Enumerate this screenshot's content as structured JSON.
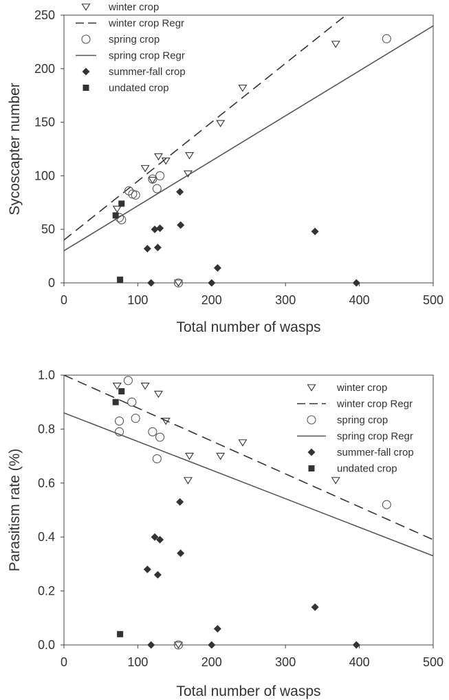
{
  "chart_data": [
    {
      "type": "scatter",
      "title": "",
      "xlabel": "Total number of wasps",
      "ylabel": "Sycoscapter number",
      "xlim": [
        0,
        500
      ],
      "ylim": [
        0,
        250
      ],
      "xticks": [
        "0",
        "100",
        "200",
        "300",
        "400",
        "500"
      ],
      "yticks": [
        "0",
        "50",
        "100",
        "150",
        "200",
        "250"
      ],
      "legend_position": "top-left",
      "series": [
        {
          "name": "winter crop",
          "kind": "points",
          "marker": "triangle-down-open",
          "color": "#333333",
          "points": [
            [
              72,
              69
            ],
            [
              110,
              107
            ],
            [
              120,
              96
            ],
            [
              128,
              118
            ],
            [
              138,
              114
            ],
            [
              155,
              0
            ],
            [
              170,
              119
            ],
            [
              168,
              102
            ],
            [
              212,
              149
            ],
            [
              242,
              182
            ],
            [
              368,
              223
            ]
          ]
        },
        {
          "name": "winter crop Regr",
          "kind": "line",
          "dash": "dashed",
          "color": "#333333",
          "line": [
            [
              0,
              40
            ],
            [
              500,
              315
            ]
          ]
        },
        {
          "name": "spring crop",
          "kind": "points",
          "marker": "circle-open",
          "color": "#555555",
          "points": [
            [
              75,
              61
            ],
            [
              78,
              59
            ],
            [
              88,
              86
            ],
            [
              93,
              83
            ],
            [
              97,
              82
            ],
            [
              120,
              97
            ],
            [
              126,
              88
            ],
            [
              130,
              100
            ],
            [
              155,
              0
            ],
            [
              437,
              228
            ]
          ]
        },
        {
          "name": "spring crop Regr",
          "kind": "line",
          "dash": "solid",
          "color": "#555555",
          "line": [
            [
              0,
              30
            ],
            [
              500,
              240
            ]
          ]
        },
        {
          "name": "summer-fall crop",
          "kind": "points",
          "marker": "diamond-filled",
          "color": "#333333",
          "points": [
            [
              113,
              32
            ],
            [
              118,
              0
            ],
            [
              123,
              50
            ],
            [
              127,
              33
            ],
            [
              130,
              51
            ],
            [
              157,
              85
            ],
            [
              158,
              54
            ],
            [
              200,
              0
            ],
            [
              208,
              14
            ],
            [
              340,
              48
            ],
            [
              396,
              0
            ]
          ]
        },
        {
          "name": "undated crop",
          "kind": "points",
          "marker": "square-filled",
          "color": "#333333",
          "points": [
            [
              70,
              63
            ],
            [
              78,
              74
            ],
            [
              76,
              3
            ]
          ]
        }
      ]
    },
    {
      "type": "scatter",
      "title": "",
      "xlabel": "Total number of wasps",
      "ylabel": "Parasitism rate (%)",
      "xlim": [
        0,
        500
      ],
      "ylim": [
        0,
        1.0
      ],
      "xticks": [
        "0",
        "100",
        "200",
        "300",
        "400",
        "500"
      ],
      "yticks": [
        "0.0",
        "0.2",
        "0.4",
        "0.6",
        "0.8",
        "1.0"
      ],
      "legend_position": "top-right",
      "series": [
        {
          "name": "winter crop",
          "kind": "points",
          "marker": "triangle-down-open",
          "color": "#333333",
          "points": [
            [
              72,
              0.96
            ],
            [
              110,
              0.96
            ],
            [
              128,
              0.93
            ],
            [
              138,
              0.83
            ],
            [
              155,
              0.0
            ],
            [
              168,
              0.61
            ],
            [
              170,
              0.7
            ],
            [
              212,
              0.7
            ],
            [
              242,
              0.75
            ],
            [
              368,
              0.61
            ]
          ]
        },
        {
          "name": "winter crop Regr",
          "kind": "line",
          "dash": "dashed",
          "color": "#333333",
          "line": [
            [
              0,
              1.0
            ],
            [
              500,
              0.39
            ]
          ]
        },
        {
          "name": "spring crop",
          "kind": "points",
          "marker": "circle-open",
          "color": "#555555",
          "points": [
            [
              75,
              0.83
            ],
            [
              75,
              0.79
            ],
            [
              87,
              0.98
            ],
            [
              92,
              0.9
            ],
            [
              97,
              0.84
            ],
            [
              120,
              0.79
            ],
            [
              126,
              0.69
            ],
            [
              130,
              0.77
            ],
            [
              155,
              0.0
            ],
            [
              437,
              0.52
            ]
          ]
        },
        {
          "name": "spring crop Regr",
          "kind": "line",
          "dash": "solid",
          "color": "#555555",
          "line": [
            [
              0,
              0.86
            ],
            [
              500,
              0.33
            ]
          ]
        },
        {
          "name": "summer-fall crop",
          "kind": "points",
          "marker": "diamond-filled",
          "color": "#333333",
          "points": [
            [
              113,
              0.28
            ],
            [
              118,
              0.0
            ],
            [
              123,
              0.4
            ],
            [
              127,
              0.26
            ],
            [
              130,
              0.39
            ],
            [
              157,
              0.53
            ],
            [
              158,
              0.34
            ],
            [
              200,
              0.0
            ],
            [
              208,
              0.06
            ],
            [
              340,
              0.14
            ],
            [
              396,
              0.0
            ]
          ]
        },
        {
          "name": "undated crop",
          "kind": "points",
          "marker": "square-filled",
          "color": "#333333",
          "points": [
            [
              70,
              0.9
            ],
            [
              78,
              0.94
            ],
            [
              76,
              0.04
            ]
          ]
        }
      ]
    }
  ]
}
